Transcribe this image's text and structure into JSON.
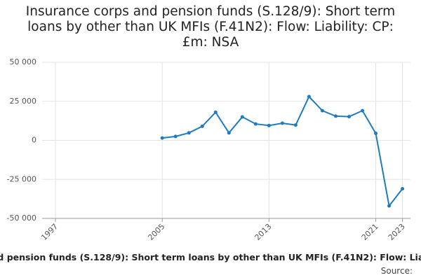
{
  "chart_data": {
    "type": "line",
    "title": "Insurance corps and pension funds (S.128/9): Short term loans by other than UK MFIs (F.41N2): Flow: Liability: CP: £m: NSA",
    "source": "Source:",
    "x": [
      2005,
      2006,
      2007,
      2008,
      2009,
      2010,
      2011,
      2012,
      2013,
      2014,
      2015,
      2016,
      2017,
      2018,
      2019,
      2020,
      2021,
      2022,
      2023
    ],
    "series": [
      {
        "name": "Flow",
        "color": "#1f7bc0",
        "values": [
          1500,
          2500,
          4800,
          9000,
          18000,
          4800,
          15000,
          10500,
          9500,
          11000,
          9800,
          28000,
          19000,
          15500,
          15200,
          19000,
          4500,
          -42000,
          -31000
        ]
      }
    ],
    "xlim": [
      1996,
      2023.6
    ],
    "xticks": [
      1997,
      2005,
      2013,
      2021,
      2023
    ],
    "ylim": [
      -50000,
      50000
    ],
    "yticks": [
      {
        "value": -50000,
        "label": "-50 000"
      },
      {
        "value": -25000,
        "label": "-25 000"
      },
      0,
      {
        "value": 25000,
        "label": "25 000"
      },
      {
        "value": 50000,
        "label": "50 000"
      }
    ],
    "grid": true
  }
}
